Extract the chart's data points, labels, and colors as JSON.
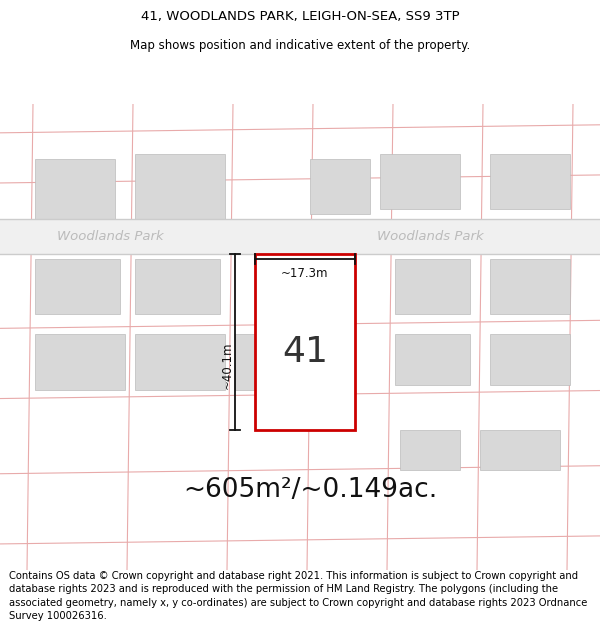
{
  "title": "41, WOODLANDS PARK, LEIGH-ON-SEA, SS9 3TP",
  "subtitle": "Map shows position and indicative extent of the property.",
  "area_text": "~605m²/~0.149ac.",
  "width_label": "~17.3m",
  "height_label": "~40.1m",
  "property_number": "41",
  "street_label1": "Woodlands Park",
  "street_label2": "Woodlands Park",
  "footer": "Contains OS data © Crown copyright and database right 2021. This information is subject to Crown copyright and database rights 2023 and is reproduced with the permission of HM Land Registry. The polygons (including the associated geometry, namely x, y co-ordinates) are subject to Crown copyright and database rights 2023 Ordnance Survey 100026316.",
  "title_fontsize": 9.5,
  "subtitle_fontsize": 8.5,
  "area_fontsize": 19,
  "label_fontsize": 8.5,
  "street_fontsize": 9.5,
  "footer_fontsize": 7.2,
  "grid_color": "#e8aaaa",
  "property_color": "#cc0000",
  "road_gray": "#d0d0d0"
}
